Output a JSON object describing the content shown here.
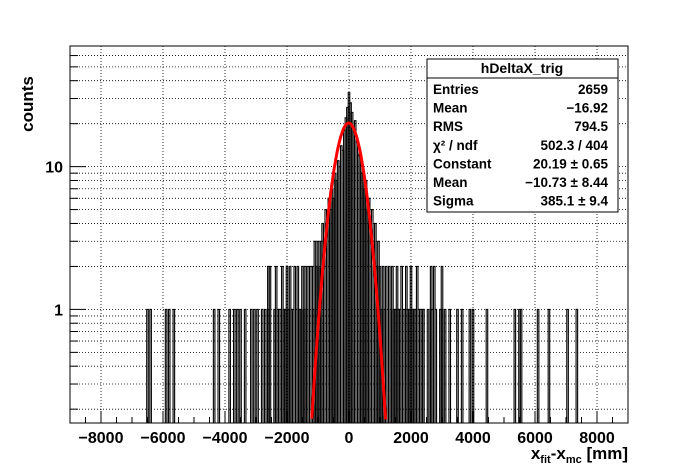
{
  "chart_data": {
    "type": "histogram",
    "title": "",
    "xlabel": {
      "base": "x",
      "sub1": "fit",
      "mid": "-x",
      "sub2": "mc",
      "unit": " [mm]"
    },
    "ylabel": "counts",
    "xlim": [
      -9000,
      9000
    ],
    "ylim": [
      0.16,
      70
    ],
    "log_y": true,
    "grid": true,
    "x_ticks": [
      -8000,
      -6000,
      -4000,
      -2000,
      0,
      2000,
      4000,
      6000,
      8000
    ],
    "x_tick_labels": [
      "−8000",
      "−6000",
      "−4000",
      "−2000",
      "0",
      "2000",
      "4000",
      "6000",
      "8000"
    ],
    "y_ticks": [
      1,
      10
    ],
    "y_tick_labels": [
      "1",
      "10"
    ],
    "histogram": {
      "name": "hDeltaX_trig",
      "entries": 2659,
      "mean": -16.92,
      "rms": 794.5,
      "color": "#000000"
    },
    "fit": {
      "function": "gaus",
      "constant": 20.19,
      "mean": -10.73,
      "sigma": 385.1,
      "color": "#ff0000"
    },
    "stats_box": {
      "title": "hDeltaX_trig",
      "rows": [
        {
          "label": "Entries",
          "value": "2659"
        },
        {
          "label": "Mean",
          "value": "−16.92"
        },
        {
          "label": "RMS",
          "value": "794.5"
        },
        {
          "label": "χ² / ndf",
          "value": "502.3 / 404"
        },
        {
          "label": "Constant",
          "value": "20.19 ± 0.65"
        },
        {
          "label": "Mean",
          "value": "−10.73 ± 8.44"
        },
        {
          "label": "Sigma",
          "value": "385.1 ± 9.4"
        }
      ]
    },
    "isolated_bins_at_one": [
      -6500,
      -6400,
      -5900,
      -5800,
      -5650,
      -4350,
      -4200,
      -3850,
      -3700,
      -3600,
      -3500,
      -3350,
      -3150,
      -3050,
      -2950,
      -2800,
      -2700,
      -2600,
      2550,
      2650,
      2700,
      2800,
      2950,
      3000,
      3100,
      3250,
      3500,
      3650,
      3900,
      4000,
      4450,
      5350,
      5500,
      5550,
      6100,
      6450,
      7050,
      7350
    ],
    "isolated_bins_at_two": [
      -2600,
      -2550,
      2650,
      2750,
      3000
    ],
    "core_values": [
      [
        -2400,
        1
      ],
      [
        -2350,
        2
      ],
      [
        -2300,
        1
      ],
      [
        -2250,
        1
      ],
      [
        -2200,
        1
      ],
      [
        -2150,
        2
      ],
      [
        -2100,
        1
      ],
      [
        -2050,
        1
      ],
      [
        -2000,
        2
      ],
      [
        -1950,
        1
      ],
      [
        -1900,
        2
      ],
      [
        -1850,
        1
      ],
      [
        -1800,
        1
      ],
      [
        -1750,
        2
      ],
      [
        -1700,
        1
      ],
      [
        -1650,
        2
      ],
      [
        -1600,
        1
      ],
      [
        -1550,
        1
      ],
      [
        -1500,
        2
      ],
      [
        -1450,
        1
      ],
      [
        -1400,
        2
      ],
      [
        -1350,
        1
      ],
      [
        -1300,
        2
      ],
      [
        -1250,
        1
      ],
      [
        -1200,
        2
      ],
      [
        -1150,
        1
      ],
      [
        -1100,
        3
      ],
      [
        -1050,
        2
      ],
      [
        -1000,
        3
      ],
      [
        -950,
        2
      ],
      [
        -900,
        3
      ],
      [
        -850,
        4
      ],
      [
        -800,
        3
      ],
      [
        -750,
        5
      ],
      [
        -700,
        4
      ],
      [
        -650,
        6
      ],
      [
        -600,
        5
      ],
      [
        -550,
        7
      ],
      [
        -500,
        6
      ],
      [
        -450,
        9
      ],
      [
        -400,
        8
      ],
      [
        -350,
        11
      ],
      [
        -300,
        10
      ],
      [
        -250,
        14
      ],
      [
        -200,
        13
      ],
      [
        -150,
        18
      ],
      [
        -100,
        22
      ],
      [
        -50,
        26
      ],
      [
        0,
        33
      ],
      [
        50,
        28
      ],
      [
        100,
        24
      ],
      [
        150,
        19
      ],
      [
        200,
        21
      ],
      [
        250,
        15
      ],
      [
        300,
        12
      ],
      [
        350,
        13
      ],
      [
        400,
        9
      ],
      [
        450,
        10
      ],
      [
        500,
        7
      ],
      [
        550,
        8
      ],
      [
        600,
        5
      ],
      [
        650,
        6
      ],
      [
        700,
        4
      ],
      [
        750,
        5
      ],
      [
        800,
        3
      ],
      [
        850,
        4
      ],
      [
        900,
        2
      ],
      [
        950,
        3
      ],
      [
        1000,
        2
      ],
      [
        1050,
        1
      ],
      [
        1100,
        2
      ],
      [
        1150,
        1
      ],
      [
        1200,
        2
      ],
      [
        1250,
        1
      ],
      [
        1300,
        2
      ],
      [
        1350,
        1
      ],
      [
        1400,
        2
      ],
      [
        1450,
        1
      ],
      [
        1500,
        1
      ],
      [
        1550,
        2
      ],
      [
        1600,
        1
      ],
      [
        1650,
        1
      ],
      [
        1700,
        2
      ],
      [
        1750,
        1
      ],
      [
        1800,
        1
      ],
      [
        1850,
        2
      ],
      [
        1900,
        1
      ],
      [
        1950,
        1
      ],
      [
        2000,
        2
      ],
      [
        2050,
        1
      ],
      [
        2100,
        1
      ],
      [
        2150,
        1
      ],
      [
        2200,
        2
      ],
      [
        2250,
        1
      ],
      [
        2300,
        1
      ],
      [
        2350,
        1
      ],
      [
        2400,
        1
      ]
    ]
  }
}
